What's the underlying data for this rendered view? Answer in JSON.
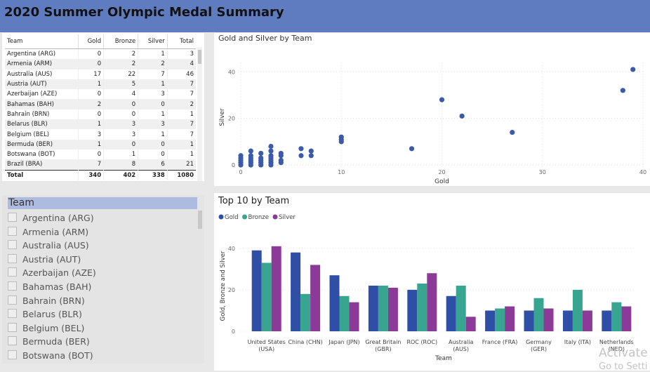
{
  "header": {
    "title": "2020 Summer Olympic Medal Summary"
  },
  "table": {
    "columns": [
      "Team",
      "Gold",
      "Bronze",
      "Silver",
      "Total"
    ],
    "rows": [
      [
        "Argentina (ARG)",
        0,
        2,
        1,
        3
      ],
      [
        "Armenia (ARM)",
        0,
        2,
        2,
        4
      ],
      [
        "Australia (AUS)",
        17,
        22,
        7,
        46
      ],
      [
        "Austria (AUT)",
        1,
        5,
        1,
        7
      ],
      [
        "Azerbaijan (AZE)",
        0,
        4,
        3,
        7
      ],
      [
        "Bahamas (BAH)",
        2,
        0,
        0,
        2
      ],
      [
        "Bahrain (BRN)",
        0,
        0,
        1,
        1
      ],
      [
        "Belarus (BLR)",
        1,
        3,
        3,
        7
      ],
      [
        "Belgium (BEL)",
        3,
        3,
        1,
        7
      ],
      [
        "Bermuda (BER)",
        1,
        0,
        0,
        1
      ],
      [
        "Botswana (BOT)",
        0,
        1,
        0,
        1
      ],
      [
        "Brazil (BRA)",
        7,
        8,
        6,
        21
      ]
    ],
    "total": [
      "Total",
      340,
      402,
      338,
      1080
    ]
  },
  "slicer": {
    "title": "Team",
    "items": [
      "Argentina (ARG)",
      "Armenia (ARM)",
      "Australia (AUS)",
      "Austria (AUT)",
      "Azerbaijan (AZE)",
      "Bahamas (BAH)",
      "Bahrain (BRN)",
      "Belarus (BLR)",
      "Belgium (BEL)",
      "Bermuda (BER)",
      "Botswana (BOT)"
    ]
  },
  "chart_data": [
    {
      "type": "scatter",
      "title": "Gold and Silver by Team",
      "x_label": "Gold",
      "y_label": "Silver",
      "color": "#3b5ba9",
      "x": [
        0,
        0,
        0,
        0,
        0,
        1,
        1,
        1,
        1,
        1,
        1,
        2,
        2,
        2,
        2,
        2,
        3,
        3,
        3,
        3,
        3,
        3,
        3,
        4,
        4,
        4,
        4,
        6,
        6,
        7,
        7,
        10,
        10,
        10,
        17,
        20,
        22,
        27,
        38,
        39
      ],
      "values": [
        0,
        1,
        2,
        3,
        4,
        0,
        1,
        2,
        3,
        4,
        6,
        0,
        1,
        2,
        3,
        5,
        0,
        1,
        2,
        3,
        4,
        6,
        8,
        1,
        2,
        4,
        5,
        4,
        7,
        4,
        6,
        10,
        11,
        12,
        7,
        28,
        21,
        14,
        32,
        41
      ],
      "xlim": [
        0,
        40
      ],
      "ylim": [
        -3,
        44
      ],
      "xticks": [
        0,
        10,
        20,
        30,
        40
      ],
      "yticks": [
        0,
        20,
        40
      ],
      "grid": true
    },
    {
      "type": "bar",
      "title": "Top 10 by Team",
      "x_label": "Team",
      "y_label": "Gold, Bronze and Silver",
      "categories": [
        "United States (USA)",
        "China (CHN)",
        "Japan (JPN)",
        "Great Britain (GBR)",
        "ROC (ROC)",
        "Australia (AUS)",
        "France (FRA)",
        "Germany (GER)",
        "Italy (ITA)",
        "Netherlands (NED)"
      ],
      "series": [
        {
          "name": "Gold",
          "color": "#2f4fa6",
          "values": [
            39,
            38,
            27,
            22,
            20,
            17,
            10,
            10,
            10,
            10
          ]
        },
        {
          "name": "Bronze",
          "color": "#37a58f",
          "values": [
            33,
            18,
            17,
            22,
            23,
            22,
            11,
            16,
            20,
            14
          ]
        },
        {
          "name": "Silver",
          "color": "#8b3a97",
          "values": [
            41,
            32,
            14,
            21,
            28,
            7,
            12,
            11,
            10,
            12
          ]
        }
      ],
      "ylim": [
        0,
        45
      ],
      "yticks": [
        0,
        20,
        40
      ],
      "grid": true,
      "legend": "top-left"
    }
  ],
  "watermark": [
    "Activate",
    "Go to Setti"
  ]
}
